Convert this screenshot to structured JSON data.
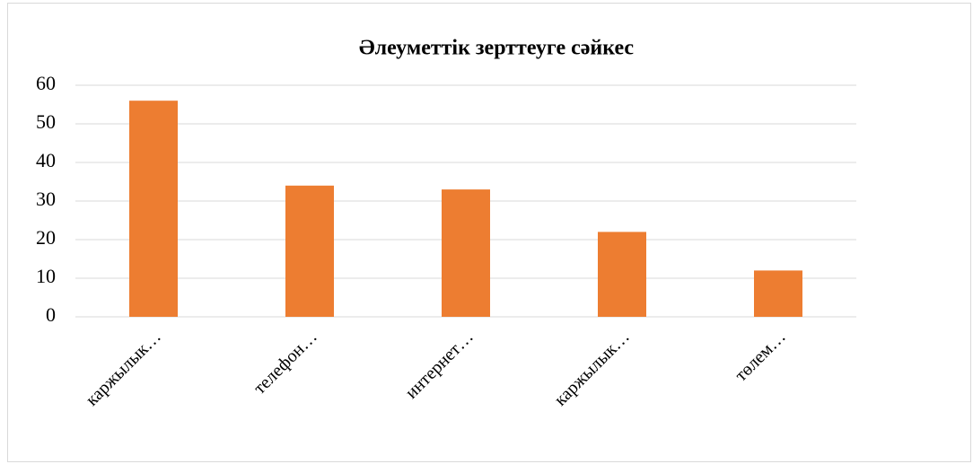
{
  "chart_data": {
    "type": "bar",
    "title": "Әлеуметтік зерттеуге сәйкес",
    "categories": [
      "каржылык…",
      "телефон…",
      "интернет…",
      "каржылык…",
      "төлем…"
    ],
    "values": [
      56,
      34,
      33,
      22,
      12
    ],
    "color": "#ed7d31",
    "ylim": [
      0,
      60
    ],
    "yticks": [
      0,
      10,
      20,
      30,
      40,
      50,
      60
    ],
    "grid": true
  }
}
